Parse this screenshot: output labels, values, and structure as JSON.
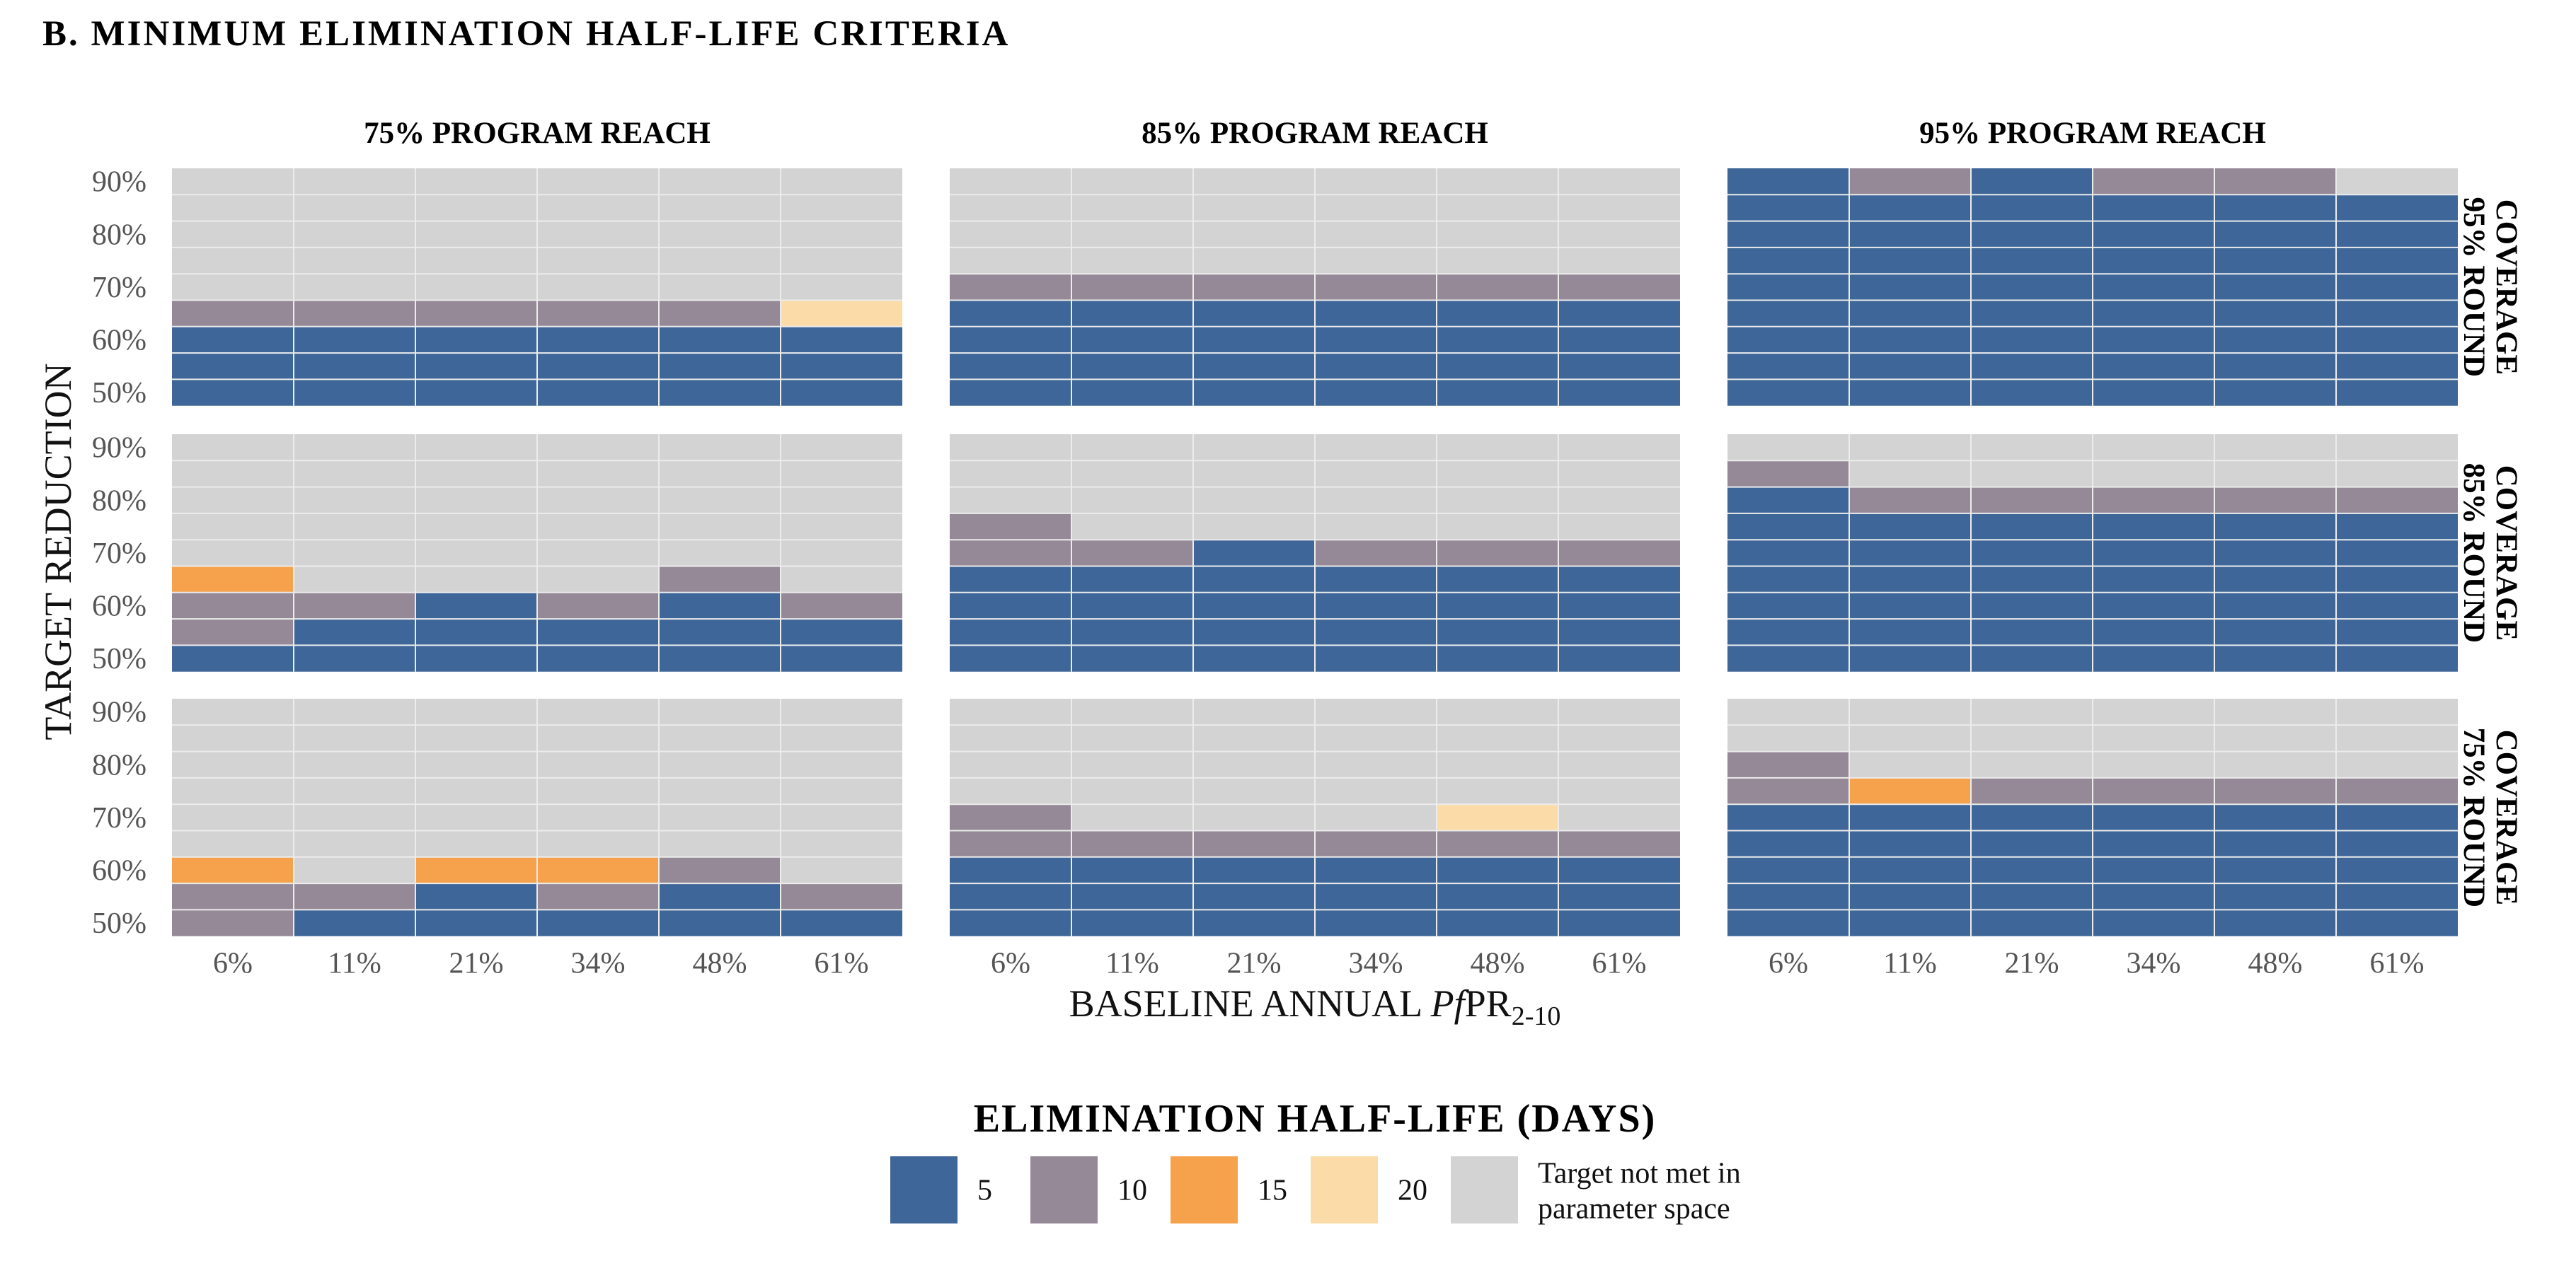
{
  "page_title": "B.  MINIMUM  ELIMINATION  HALF-LIFE  CRITERIA",
  "colors": {
    "5": "#3e6698",
    "10": "#968997",
    "15": "#f6a24d",
    "20": "#fbdca8",
    "none": "#d3d3d3",
    "grid": "#ececec"
  },
  "chart_data": {
    "type": "heatmap",
    "title": "B.  MINIMUM  ELIMINATION  HALF-LIFE  CRITERIA",
    "xlabel_prefix": "BASELINE ANNUAL ",
    "xlabel_italic": "Pf",
    "xlabel_main": "PR",
    "xlabel_sub": "2-10",
    "ylabel": "TARGET  REDUCTION",
    "x_categories": [
      "6%",
      "11%",
      "21%",
      "34%",
      "48%",
      "61%"
    ],
    "y_categories": [
      "50%",
      "55%",
      "60%",
      "65%",
      "70%",
      "75%",
      "80%",
      "85%",
      "90%"
    ],
    "y_tick_labels": [
      "50%",
      "60%",
      "70%",
      "80%",
      "90%"
    ],
    "column_facets": [
      "75% PROGRAM REACH",
      "85% PROGRAM REACH",
      "95% PROGRAM REACH"
    ],
    "row_facets": [
      [
        "95% ROUND",
        "COVERAGE"
      ],
      [
        "85% ROUND",
        "COVERAGE"
      ],
      [
        "75% ROUND",
        "COVERAGE"
      ]
    ],
    "panels": [
      [
        {
          "runs": [
            [
              [
                5,
                3
              ],
              [
                10,
                1
              ]
            ],
            [
              [
                5,
                3
              ],
              [
                10,
                1
              ]
            ],
            [
              [
                5,
                3
              ],
              [
                10,
                1
              ]
            ],
            [
              [
                5,
                3
              ],
              [
                10,
                1
              ]
            ],
            [
              [
                5,
                3
              ],
              [
                10,
                1
              ]
            ],
            [
              [
                5,
                3
              ],
              [
                20,
                1
              ]
            ]
          ]
        },
        {
          "runs": [
            [
              [
                5,
                4
              ],
              [
                10,
                1
              ]
            ],
            [
              [
                5,
                4
              ],
              [
                10,
                1
              ]
            ],
            [
              [
                5,
                4
              ],
              [
                10,
                1
              ]
            ],
            [
              [
                5,
                4
              ],
              [
                10,
                1
              ]
            ],
            [
              [
                5,
                4
              ],
              [
                10,
                1
              ]
            ],
            [
              [
                5,
                4
              ],
              [
                10,
                1
              ]
            ]
          ]
        },
        {
          "runs": [
            [
              [
                5,
                9
              ]
            ],
            [
              [
                5,
                8
              ],
              [
                10,
                1
              ]
            ],
            [
              [
                5,
                9
              ]
            ],
            [
              [
                5,
                8
              ],
              [
                10,
                1
              ]
            ],
            [
              [
                5,
                8
              ],
              [
                10,
                1
              ]
            ],
            [
              [
                5,
                8
              ]
            ]
          ]
        }
      ],
      [
        {
          "runs": [
            [
              [
                5,
                1
              ],
              [
                10,
                2
              ],
              [
                15,
                1
              ]
            ],
            [
              [
                5,
                2
              ],
              [
                10,
                1
              ]
            ],
            [
              [
                5,
                3
              ]
            ],
            [
              [
                5,
                2
              ],
              [
                10,
                1
              ]
            ],
            [
              [
                5,
                3
              ],
              [
                10,
                1
              ]
            ],
            [
              [
                5,
                2
              ],
              [
                10,
                1
              ]
            ]
          ]
        },
        {
          "runs": [
            [
              [
                5,
                4
              ],
              [
                10,
                2
              ]
            ],
            [
              [
                5,
                4
              ],
              [
                10,
                1
              ]
            ],
            [
              [
                5,
                5
              ]
            ],
            [
              [
                5,
                4
              ],
              [
                10,
                1
              ]
            ],
            [
              [
                5,
                4
              ],
              [
                10,
                1
              ]
            ],
            [
              [
                5,
                4
              ],
              [
                10,
                1
              ]
            ]
          ]
        },
        {
          "runs": [
            [
              [
                5,
                7
              ],
              [
                10,
                1
              ]
            ],
            [
              [
                5,
                6
              ],
              [
                10,
                1
              ]
            ],
            [
              [
                5,
                6
              ],
              [
                10,
                1
              ]
            ],
            [
              [
                5,
                6
              ],
              [
                10,
                1
              ]
            ],
            [
              [
                5,
                6
              ],
              [
                10,
                1
              ]
            ],
            [
              [
                5,
                6
              ],
              [
                10,
                1
              ]
            ]
          ]
        }
      ],
      [
        {
          "runs": [
            [
              [
                10,
                2
              ],
              [
                15,
                1
              ]
            ],
            [
              [
                5,
                1
              ],
              [
                10,
                1
              ]
            ],
            [
              [
                5,
                2
              ],
              [
                15,
                1
              ]
            ],
            [
              [
                5,
                1
              ],
              [
                10,
                1
              ],
              [
                15,
                1
              ]
            ],
            [
              [
                5,
                2
              ],
              [
                10,
                1
              ]
            ],
            [
              [
                5,
                1
              ],
              [
                10,
                1
              ]
            ]
          ]
        },
        {
          "runs": [
            [
              [
                5,
                3
              ],
              [
                10,
                2
              ]
            ],
            [
              [
                5,
                3
              ],
              [
                10,
                1
              ]
            ],
            [
              [
                5,
                3
              ],
              [
                10,
                1
              ]
            ],
            [
              [
                5,
                3
              ],
              [
                10,
                1
              ]
            ],
            [
              [
                5,
                3
              ],
              [
                10,
                1
              ],
              [
                20,
                1
              ]
            ],
            [
              [
                5,
                3
              ],
              [
                10,
                1
              ]
            ]
          ]
        },
        {
          "runs": [
            [
              [
                5,
                5
              ],
              [
                10,
                2
              ]
            ],
            [
              [
                5,
                5
              ],
              [
                15,
                1
              ]
            ],
            [
              [
                5,
                5
              ],
              [
                10,
                1
              ]
            ],
            [
              [
                5,
                5
              ],
              [
                10,
                1
              ]
            ],
            [
              [
                5,
                5
              ],
              [
                10,
                1
              ]
            ],
            [
              [
                5,
                5
              ],
              [
                10,
                1
              ]
            ]
          ]
        }
      ]
    ],
    "legend": {
      "title": "ELIMINATION  HALF-LIFE  (DAYS)",
      "entries": [
        {
          "key": "5",
          "label": "5"
        },
        {
          "key": "10",
          "label": "10"
        },
        {
          "key": "15",
          "label": "15"
        },
        {
          "key": "20",
          "label": "20"
        },
        {
          "key": "none",
          "label": [
            "Target not met in",
            "parameter space"
          ]
        }
      ]
    }
  }
}
